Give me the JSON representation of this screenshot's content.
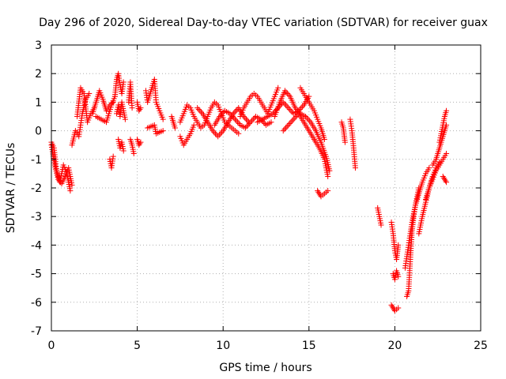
{
  "chart_data": {
    "type": "scatter",
    "title": "Day 296 of 2020, Sidereal Day-to-day VTEC variation (SDTVAR) for receiver guax",
    "xlabel": "GPS time / hours",
    "ylabel": "SDTVAR / TECUs",
    "xlim": [
      0,
      25
    ],
    "ylim": [
      -7,
      3
    ],
    "xticks": [
      0,
      5,
      10,
      15,
      20,
      25
    ],
    "yticks": [
      -7,
      -6,
      -5,
      -4,
      -3,
      -2,
      -1,
      0,
      1,
      2,
      3
    ],
    "grid": true,
    "marker": "+",
    "marker_color": "#ff0000",
    "segments": [
      {
        "x": [
          0.0,
          0.2,
          0.4,
          0.6,
          0.8,
          1.0,
          1.2
        ],
        "y": [
          -0.5,
          -1.2,
          -1.7,
          -1.85,
          -1.6,
          -1.3,
          -1.9
        ]
      },
      {
        "x": [
          0.0,
          0.15,
          0.3,
          0.5,
          0.7,
          0.9,
          1.1
        ],
        "y": [
          -0.4,
          -0.6,
          -1.4,
          -1.8,
          -1.2,
          -1.5,
          -2.1
        ]
      },
      {
        "x": [
          1.2,
          1.4,
          1.6,
          1.8,
          2.0,
          2.2
        ],
        "y": [
          -0.5,
          0.0,
          -0.2,
          0.6,
          1.1,
          1.3
        ]
      },
      {
        "x": [
          1.5,
          1.7,
          1.9,
          2.1,
          2.3,
          2.5
        ],
        "y": [
          0.5,
          1.5,
          1.3,
          0.3,
          0.6,
          0.8
        ]
      },
      {
        "x": [
          2.4,
          2.6,
          2.8,
          3.0,
          3.2,
          3.4,
          3.6
        ],
        "y": [
          0.6,
          1.0,
          1.4,
          1.1,
          0.7,
          0.9,
          1.0
        ]
      },
      {
        "x": [
          2.6,
          2.9,
          3.2,
          3.5,
          3.7
        ],
        "y": [
          0.5,
          0.4,
          0.3,
          0.9,
          1.2
        ]
      },
      {
        "x": [
          3.4,
          3.5,
          3.6
        ],
        "y": [
          -1.0,
          -1.3,
          -0.9
        ]
      },
      {
        "x": [
          3.7,
          3.8,
          3.9,
          4.0,
          4.1,
          4.2
        ],
        "y": [
          1.2,
          1.8,
          2.0,
          1.6,
          1.3,
          1.7
        ]
      },
      {
        "x": [
          3.8,
          3.9,
          4.0,
          4.1,
          4.2,
          4.3
        ],
        "y": [
          0.6,
          0.9,
          0.5,
          1.0,
          0.7,
          0.4
        ]
      },
      {
        "x": [
          3.9,
          4.0,
          4.1,
          4.2
        ],
        "y": [
          -0.3,
          -0.6,
          -0.4,
          -0.7
        ]
      },
      {
        "x": [
          4.5,
          4.6,
          4.7
        ],
        "y": [
          1.0,
          1.7,
          0.8
        ]
      },
      {
        "x": [
          4.6,
          4.7,
          4.8
        ],
        "y": [
          -0.3,
          -0.5,
          -0.8
        ]
      },
      {
        "x": [
          5.0,
          5.1,
          5.2
        ],
        "y": [
          1.0,
          0.7,
          0.8
        ]
      },
      {
        "x": [
          5.0,
          5.1,
          5.2
        ],
        "y": [
          -0.3,
          -0.5,
          -0.4
        ]
      },
      {
        "x": [
          5.5,
          5.6,
          6.0,
          6.1,
          6.5
        ],
        "y": [
          1.4,
          1.0,
          1.8,
          1.0,
          0.4
        ]
      },
      {
        "x": [
          5.6,
          6.0,
          6.1,
          6.5
        ],
        "y": [
          0.1,
          0.2,
          -0.1,
          0.0
        ]
      },
      {
        "x": [
          7.0,
          7.1,
          7.2
        ],
        "y": [
          0.5,
          0.3,
          0.1
        ]
      },
      {
        "x": [
          7.5,
          7.7,
          7.9,
          8.1,
          8.3,
          8.5,
          8.7,
          8.9,
          9.1,
          9.3,
          9.5,
          9.7,
          9.9,
          10.1,
          10.3,
          10.5,
          10.7,
          10.9
        ],
        "y": [
          0.3,
          0.6,
          0.9,
          0.8,
          0.5,
          0.3,
          0.1,
          0.2,
          0.5,
          0.8,
          1.0,
          0.9,
          0.6,
          0.3,
          0.2,
          0.1,
          0.0,
          -0.1
        ]
      },
      {
        "x": [
          7.5,
          7.7,
          7.9,
          8.1,
          8.3
        ],
        "y": [
          -0.2,
          -0.5,
          -0.3,
          -0.1,
          0.2
        ]
      },
      {
        "x": [
          8.5,
          8.8,
          9.1,
          9.4,
          9.7,
          10.0,
          10.3,
          10.6,
          10.9,
          11.2,
          11.5
        ],
        "y": [
          0.8,
          0.6,
          0.3,
          0.0,
          -0.2,
          0.0,
          0.3,
          0.6,
          0.8,
          0.5,
          0.3
        ]
      },
      {
        "x": [
          9.5,
          9.8,
          10.1,
          10.4,
          10.7,
          11.0,
          11.3,
          11.6,
          11.9,
          12.2,
          12.5,
          12.8
        ],
        "y": [
          0.2,
          0.5,
          0.7,
          0.6,
          0.4,
          0.2,
          0.1,
          0.3,
          0.5,
          0.4,
          0.2,
          0.3
        ]
      },
      {
        "x": [
          11.0,
          11.2,
          11.4,
          11.6,
          11.8,
          12.0,
          12.2,
          12.4,
          12.6,
          12.8,
          13.0,
          13.2
        ],
        "y": [
          0.5,
          0.8,
          1.0,
          1.2,
          1.3,
          1.2,
          1.0,
          0.8,
          0.6,
          0.9,
          1.2,
          1.5
        ]
      },
      {
        "x": [
          12.0,
          12.3,
          12.6,
          12.9,
          13.2,
          13.5,
          13.8,
          14.1,
          14.4,
          14.7,
          15.0
        ],
        "y": [
          0.3,
          0.4,
          0.5,
          0.6,
          0.8,
          1.0,
          0.8,
          0.6,
          0.7,
          0.9,
          1.2
        ]
      },
      {
        "x": [
          13.0,
          13.3,
          13.6,
          13.9,
          14.2,
          14.5,
          14.8,
          15.1,
          15.4,
          15.7,
          16.0,
          16.2
        ],
        "y": [
          0.5,
          1.0,
          1.4,
          1.2,
          0.8,
          0.6,
          0.5,
          0.3,
          0.0,
          -0.4,
          -0.9,
          -1.4
        ]
      },
      {
        "x": [
          13.5,
          13.8,
          14.1,
          14.4,
          14.7,
          15.0,
          15.3,
          15.6,
          15.9,
          16.1
        ],
        "y": [
          0.0,
          0.2,
          0.4,
          0.6,
          0.3,
          0.0,
          -0.3,
          -0.6,
          -1.0,
          -1.6
        ]
      },
      {
        "x": [
          14.5,
          14.7,
          14.9,
          15.1,
          15.3,
          15.5,
          15.7,
          15.9
        ],
        "y": [
          1.5,
          1.3,
          1.1,
          0.9,
          0.7,
          0.4,
          0.1,
          -0.3
        ]
      },
      {
        "x": [
          15.5,
          15.6,
          15.7,
          15.8,
          15.9,
          16.0,
          16.1
        ],
        "y": [
          -2.1,
          -2.2,
          -2.3,
          -2.25,
          -2.2,
          -2.15,
          -2.1
        ]
      },
      {
        "x": [
          16.9,
          17.0,
          17.1
        ],
        "y": [
          0.3,
          0.1,
          -0.4
        ]
      },
      {
        "x": [
          17.4,
          17.5,
          17.6,
          17.7
        ],
        "y": [
          0.4,
          0.0,
          -0.6,
          -1.3
        ]
      },
      {
        "x": [
          19.0,
          19.1,
          19.2
        ],
        "y": [
          -2.7,
          -3.0,
          -3.3
        ]
      },
      {
        "x": [
          19.8,
          19.9,
          20.0,
          20.1,
          20.2
        ],
        "y": [
          -3.2,
          -3.6,
          -4.2,
          -4.5,
          -4.0
        ]
      },
      {
        "x": [
          19.9,
          20.0,
          20.1,
          20.2
        ],
        "y": [
          -5.0,
          -5.2,
          -4.9,
          -5.1
        ]
      },
      {
        "x": [
          19.8,
          19.9,
          20.0,
          20.1,
          20.2
        ],
        "y": [
          -6.1,
          -6.2,
          -6.3,
          -6.25,
          -6.2
        ]
      },
      {
        "x": [
          20.7,
          20.8,
          20.9,
          21.0,
          21.1,
          21.2,
          21.3,
          21.4
        ],
        "y": [
          -5.8,
          -5.6,
          -4.5,
          -3.5,
          -3.0,
          -2.6,
          -2.3,
          -2.0
        ]
      },
      {
        "x": [
          20.6,
          20.8,
          21.0,
          21.2,
          21.4,
          21.6,
          21.8,
          22.0
        ],
        "y": [
          -4.8,
          -4.0,
          -3.2,
          -2.6,
          -2.2,
          -1.8,
          -1.5,
          -1.3
        ]
      },
      {
        "x": [
          21.4,
          21.6,
          21.8,
          22.0,
          22.2,
          22.4,
          22.6
        ],
        "y": [
          -3.6,
          -3.0,
          -2.5,
          -2.0,
          -1.6,
          -1.3,
          -1.1
        ]
      },
      {
        "x": [
          21.8,
          22.0,
          22.2,
          22.4,
          22.6,
          22.8,
          23.0
        ],
        "y": [
          -2.4,
          -2.0,
          -1.7,
          -1.4,
          -1.2,
          -1.0,
          -0.8
        ]
      },
      {
        "x": [
          22.2,
          22.4,
          22.6,
          22.8,
          23.0
        ],
        "y": [
          -1.2,
          -1.0,
          -0.6,
          -0.2,
          0.2
        ]
      },
      {
        "x": [
          22.6,
          22.7,
          22.8,
          22.9,
          23.0
        ],
        "y": [
          -0.4,
          -0.1,
          0.2,
          0.5,
          0.7
        ]
      },
      {
        "x": [
          22.8,
          22.9,
          23.0
        ],
        "y": [
          -1.6,
          -1.7,
          -1.8
        ]
      }
    ]
  }
}
